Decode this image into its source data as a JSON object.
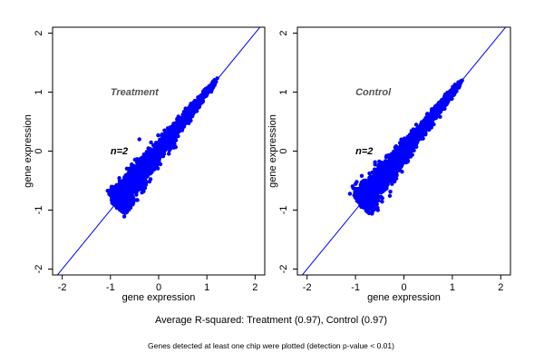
{
  "chart_data": [
    {
      "type": "scatter",
      "panel_label": "Treatment",
      "n_label": "n=2",
      "xlabel": "gene expression",
      "ylabel": "gene expression",
      "xlim": [
        -2.2,
        2.2
      ],
      "ylim": [
        -2.1,
        2.1
      ],
      "xticks": [
        "-2",
        "-1",
        "0",
        "1",
        "2"
      ],
      "yticks": [
        "-2",
        "-1",
        "0",
        "1",
        "2"
      ],
      "reference_line": "y = x",
      "point_color": "#0000ff",
      "line_color": "#0000ff",
      "cloud": {
        "axis_start": [
          -0.85,
          -0.85
        ],
        "axis_end": [
          1.15,
          1.15
        ],
        "spread_start": 0.2,
        "spread_end": 0.03,
        "outlier": [
          -0.4,
          0.2
        ]
      }
    },
    {
      "type": "scatter",
      "panel_label": "Control",
      "n_label": "n=2",
      "xlabel": "gene expression",
      "ylabel": "gene expression",
      "xlim": [
        -2.2,
        2.2
      ],
      "ylim": [
        -2.1,
        2.1
      ],
      "xticks": [
        "-2",
        "-1",
        "0",
        "1",
        "2"
      ],
      "yticks": [
        "-2",
        "-1",
        "0",
        "1",
        "2"
      ],
      "reference_line": "y = x",
      "point_color": "#0000ff",
      "line_color": "#0000ff",
      "cloud": {
        "axis_start": [
          -0.85,
          -0.85
        ],
        "axis_end": [
          1.15,
          1.15
        ],
        "spread_start": 0.2,
        "spread_end": 0.03,
        "outlier": [
          0.2,
          0.15
        ]
      }
    }
  ],
  "caption": "Average R-squared: Treatment (0.97), Control (0.97)",
  "footnote": "Genes detected at least one chip were plotted (detection p-value < 0.01)"
}
